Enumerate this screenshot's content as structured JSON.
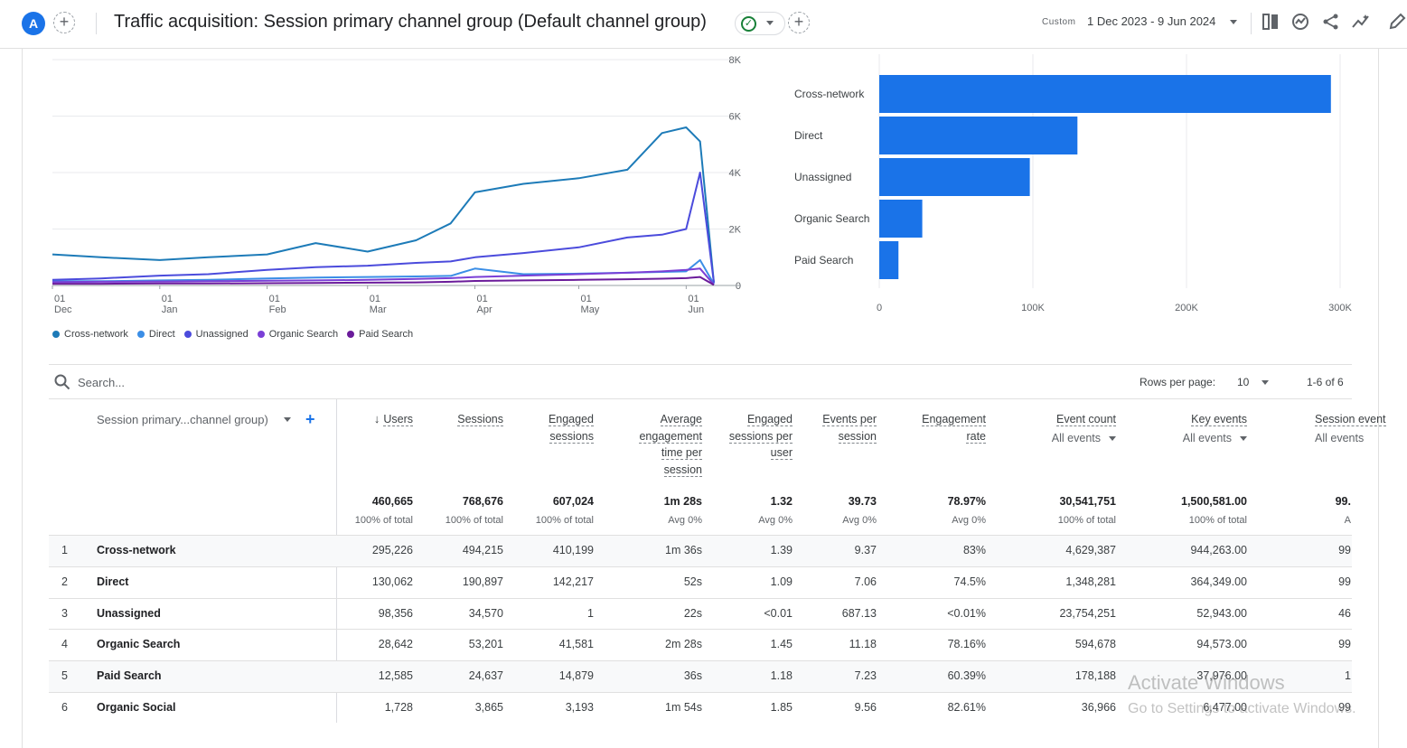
{
  "header": {
    "avatar_letter": "A",
    "title": "Traffic acquisition: Session primary channel group (Default channel group)",
    "date_label": "Custom",
    "date_range": "1 Dec 2023 - 9 Jun 2024",
    "icons": [
      "add-icon",
      "check-circle-icon",
      "compare-icon",
      "insights-icon",
      "share-icon",
      "trend-icon",
      "edit-icon"
    ]
  },
  "line_chart": {
    "y_ticks": [
      "8K",
      "6K",
      "4K",
      "2K",
      "0"
    ],
    "x_ticks": [
      {
        "day": "01",
        "month": "Dec"
      },
      {
        "day": "01",
        "month": "Jan"
      },
      {
        "day": "01",
        "month": "Feb"
      },
      {
        "day": "01",
        "month": "Mar"
      },
      {
        "day": "01",
        "month": "Apr"
      },
      {
        "day": "01",
        "month": "May"
      },
      {
        "day": "01",
        "month": "Jun"
      }
    ],
    "legend": [
      {
        "name": "Cross-network",
        "color": "#1d7bb8"
      },
      {
        "name": "Direct",
        "color": "#3b8ee6"
      },
      {
        "name": "Unassigned",
        "color": "#4b4bdc"
      },
      {
        "name": "Organic Search",
        "color": "#7a3fd6"
      },
      {
        "name": "Paid Search",
        "color": "#6a1b9a"
      }
    ]
  },
  "chart_data": [
    {
      "type": "line",
      "x": [
        "2023-12-01",
        "2023-12-15",
        "2024-01-01",
        "2024-01-15",
        "2024-02-01",
        "2024-02-15",
        "2024-03-01",
        "2024-03-15",
        "2024-03-25",
        "2024-04-01",
        "2024-04-15",
        "2024-05-01",
        "2024-05-15",
        "2024-05-25",
        "2024-06-01",
        "2024-06-05",
        "2024-06-09"
      ],
      "ylim": [
        0,
        8000
      ],
      "series": [
        {
          "name": "Cross-network",
          "color": "#1d7bb8",
          "values": [
            1100,
            1000,
            900,
            1000,
            1100,
            1500,
            1200,
            1600,
            2200,
            3300,
            3600,
            3800,
            4100,
            5400,
            5600,
            5100,
            100
          ]
        },
        {
          "name": "Direct",
          "color": "#3b8ee6",
          "values": [
            150,
            150,
            180,
            200,
            250,
            280,
            300,
            320,
            340,
            600,
            400,
            420,
            450,
            480,
            500,
            900,
            50
          ]
        },
        {
          "name": "Unassigned",
          "color": "#4b4bdc",
          "values": [
            200,
            250,
            350,
            400,
            550,
            650,
            700,
            800,
            850,
            1000,
            1150,
            1350,
            1700,
            1800,
            2000,
            4000,
            100
          ]
        },
        {
          "name": "Organic Search",
          "color": "#7a3fd6",
          "values": [
            120,
            130,
            140,
            150,
            170,
            180,
            200,
            230,
            260,
            300,
            350,
            400,
            450,
            500,
            550,
            600,
            30
          ]
        },
        {
          "name": "Paid Search",
          "color": "#6a1b9a",
          "values": [
            60,
            60,
            70,
            70,
            80,
            90,
            100,
            110,
            130,
            160,
            180,
            200,
            220,
            240,
            260,
            300,
            20
          ]
        }
      ]
    },
    {
      "type": "bar",
      "orientation": "horizontal",
      "categories": [
        "Cross-network",
        "Direct",
        "Unassigned",
        "Organic Search",
        "Paid Search"
      ],
      "values": [
        294000,
        129000,
        98000,
        28000,
        12500
      ],
      "x_ticks": [
        "0",
        "100K",
        "200K",
        "300K"
      ],
      "xlim": [
        0,
        300000
      ],
      "color": "#1a73e8"
    }
  ],
  "search": {
    "placeholder": "Search..."
  },
  "pagination": {
    "rows_per_page_label": "Rows per page:",
    "rows_per_page": "10",
    "range": "1-6 of 6"
  },
  "table": {
    "dimension_header": "Session primary...channel group)",
    "columns": [
      {
        "title": "Users",
        "sub": ""
      },
      {
        "title": "Sessions",
        "sub": ""
      },
      {
        "title": "Engaged sessions",
        "sub": ""
      },
      {
        "title": "Average engagement time per session",
        "sub": ""
      },
      {
        "title": "Engaged sessions per user",
        "sub": ""
      },
      {
        "title": "Events per session",
        "sub": ""
      },
      {
        "title": "Engagement rate",
        "sub": ""
      },
      {
        "title": "Event count",
        "sub": "All events"
      },
      {
        "title": "Key events",
        "sub": "All events"
      },
      {
        "title": "Session event",
        "sub": "All events"
      }
    ],
    "totals": [
      {
        "value": "460,665",
        "sub": "100% of total"
      },
      {
        "value": "768,676",
        "sub": "100% of total"
      },
      {
        "value": "607,024",
        "sub": "100% of total"
      },
      {
        "value": "1m 28s",
        "sub": "Avg 0%"
      },
      {
        "value": "1.32",
        "sub": "Avg 0%"
      },
      {
        "value": "39.73",
        "sub": "Avg 0%"
      },
      {
        "value": "78.97%",
        "sub": "Avg 0%"
      },
      {
        "value": "30,541,751",
        "sub": "100% of total"
      },
      {
        "value": "1,500,581.00",
        "sub": "100% of total"
      },
      {
        "value": "99.",
        "sub": "A"
      }
    ],
    "rows": [
      {
        "num": "1",
        "name": "Cross-network",
        "cells": [
          "295,226",
          "494,215",
          "410,199",
          "1m 36s",
          "1.39",
          "9.37",
          "83%",
          "4,629,387",
          "944,263.00",
          "99"
        ]
      },
      {
        "num": "2",
        "name": "Direct",
        "cells": [
          "130,062",
          "190,897",
          "142,217",
          "52s",
          "1.09",
          "7.06",
          "74.5%",
          "1,348,281",
          "364,349.00",
          "99"
        ]
      },
      {
        "num": "3",
        "name": "Unassigned",
        "cells": [
          "98,356",
          "34,570",
          "1",
          "22s",
          "<0.01",
          "687.13",
          "<0.01%",
          "23,754,251",
          "52,943.00",
          "46"
        ]
      },
      {
        "num": "4",
        "name": "Organic Search",
        "cells": [
          "28,642",
          "53,201",
          "41,581",
          "2m 28s",
          "1.45",
          "11.18",
          "78.16%",
          "594,678",
          "94,573.00",
          "99"
        ]
      },
      {
        "num": "5",
        "name": "Paid Search",
        "cells": [
          "12,585",
          "24,637",
          "14,879",
          "36s",
          "1.18",
          "7.23",
          "60.39%",
          "178,188",
          "37,976.00",
          "1"
        ]
      },
      {
        "num": "6",
        "name": "Organic Social",
        "cells": [
          "1,728",
          "3,865",
          "3,193",
          "1m 54s",
          "1.85",
          "9.56",
          "82.61%",
          "36,966",
          "6,477.00",
          "99"
        ]
      }
    ]
  },
  "watermark": {
    "line1": "Activate Windows",
    "line2": "Go to Settings to activate Windows."
  }
}
